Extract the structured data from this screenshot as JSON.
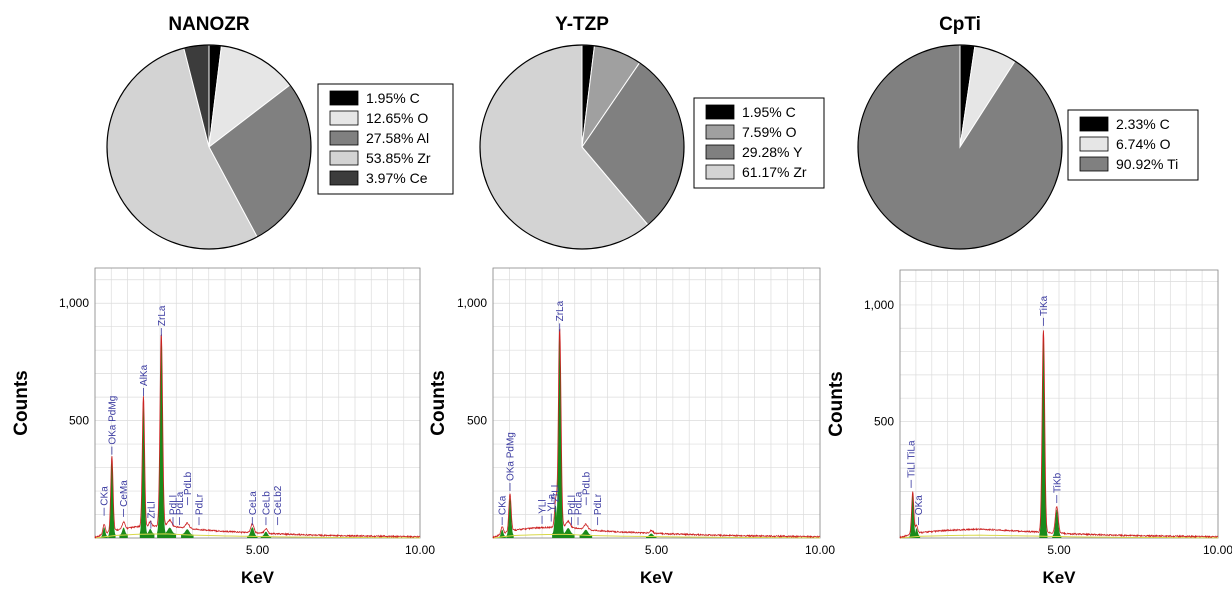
{
  "chart_data": [
    {
      "type": "pie",
      "title": "NANOZR",
      "slices": [
        {
          "label": "1.95% C",
          "value": 1.95,
          "color": "#000000"
        },
        {
          "label": "12.65% O",
          "value": 12.65,
          "color": "#e6e6e6"
        },
        {
          "label": "27.58% Al",
          "value": 27.58,
          "color": "#808080"
        },
        {
          "label": "53.85% Zr",
          "value": 53.85,
          "color": "#d3d3d3"
        },
        {
          "label": "3.97% Ce",
          "value": 3.97,
          "color": "#3c3c3c"
        }
      ]
    },
    {
      "type": "pie",
      "title": "Y-TZP",
      "slices": [
        {
          "label": "1.95% C",
          "value": 1.95,
          "color": "#000000"
        },
        {
          "label": "7.59% O",
          "value": 7.59,
          "color": "#a0a0a0"
        },
        {
          "label": "29.28% Y",
          "value": 29.28,
          "color": "#808080"
        },
        {
          "label": "61.17% Zr",
          "value": 61.17,
          "color": "#d3d3d3"
        }
      ]
    },
    {
      "type": "pie",
      "title": "CpTi",
      "slices": [
        {
          "label": "2.33% C",
          "value": 2.33,
          "color": "#000000"
        },
        {
          "label": "6.74% O",
          "value": 6.74,
          "color": "#e6e6e6"
        },
        {
          "label": "90.92% Ti",
          "value": 90.92,
          "color": "#808080"
        }
      ]
    },
    {
      "type": "line",
      "name": "NANOZR spectrum",
      "xlabel": "KeV",
      "ylabel": "Counts",
      "xlim": [
        0,
        10
      ],
      "ylim": [
        0,
        1150
      ],
      "xticks": [
        {
          "v": 5,
          "label": "5.00"
        },
        {
          "v": 10,
          "label": "10.00"
        }
      ],
      "yticks": [
        {
          "v": 500,
          "label": "500"
        },
        {
          "v": 1000,
          "label": "1,000"
        }
      ],
      "peaks": [
        {
          "x": 0.28,
          "h": 40,
          "w": 0.035
        },
        {
          "x": 0.52,
          "h": 320,
          "w": 0.035
        },
        {
          "x": 0.88,
          "h": 30,
          "w": 0.04
        },
        {
          "x": 1.49,
          "h": 555,
          "w": 0.035
        },
        {
          "x": 1.7,
          "h": 20,
          "w": 0.04
        },
        {
          "x": 2.04,
          "h": 820,
          "w": 0.04
        },
        {
          "x": 2.3,
          "h": 25,
          "w": 0.06
        },
        {
          "x": 2.84,
          "h": 22,
          "w": 0.06
        },
        {
          "x": 4.84,
          "h": 38,
          "w": 0.05
        },
        {
          "x": 5.26,
          "h": 20,
          "w": 0.05
        }
      ],
      "background": [
        {
          "x": 0,
          "y": 0
        },
        {
          "x": 0.6,
          "y": 30
        },
        {
          "x": 1.3,
          "y": 45
        },
        {
          "x": 2.2,
          "y": 50
        },
        {
          "x": 3.0,
          "y": 35
        },
        {
          "x": 4.0,
          "y": 25
        },
        {
          "x": 5.5,
          "y": 15
        },
        {
          "x": 7.0,
          "y": 8
        },
        {
          "x": 10.0,
          "y": 2
        }
      ],
      "peak_labels": [
        {
          "x": 0.28,
          "y": 95,
          "text": "CKa"
        },
        {
          "x": 0.52,
          "y": 355,
          "text": "OKa PdMg"
        },
        {
          "x": 0.88,
          "y": 90,
          "text": "CeMa"
        },
        {
          "x": 1.49,
          "y": 605,
          "text": "AlKa"
        },
        {
          "x": 1.72,
          "y": 40,
          "text": "ZrLl"
        },
        {
          "x": 2.04,
          "y": 860,
          "text": "ZrLa"
        },
        {
          "x": 2.4,
          "y": 55,
          "text": "PdLl"
        },
        {
          "x": 2.6,
          "y": 55,
          "text": "PdLa"
        },
        {
          "x": 2.85,
          "y": 140,
          "text": "PdLb"
        },
        {
          "x": 3.2,
          "y": 55,
          "text": "PdLr"
        },
        {
          "x": 4.84,
          "y": 55,
          "text": "CeLa"
        },
        {
          "x": 5.26,
          "y": 55,
          "text": "CeLb"
        },
        {
          "x": 5.62,
          "y": 55,
          "text": "CeLb2"
        }
      ]
    },
    {
      "type": "line",
      "name": "Y-TZP spectrum",
      "xlabel": "KeV",
      "ylabel": "Counts",
      "xlim": [
        0,
        10
      ],
      "ylim": [
        0,
        1150
      ],
      "xticks": [
        {
          "v": 5,
          "label": "5.00"
        },
        {
          "v": 10,
          "label": "10.00"
        }
      ],
      "yticks": [
        {
          "v": 500,
          "label": "500"
        },
        {
          "v": 1000,
          "label": "1,000"
        }
      ],
      "peaks": [
        {
          "x": 0.28,
          "h": 30,
          "w": 0.035
        },
        {
          "x": 0.52,
          "h": 160,
          "w": 0.035
        },
        {
          "x": 1.92,
          "h": 120,
          "w": 0.035
        },
        {
          "x": 2.04,
          "h": 850,
          "w": 0.04
        },
        {
          "x": 2.3,
          "h": 25,
          "w": 0.06
        },
        {
          "x": 2.84,
          "h": 22,
          "w": 0.06
        },
        {
          "x": 4.84,
          "h": 12,
          "w": 0.05
        }
      ],
      "background": [
        {
          "x": 0,
          "y": 0
        },
        {
          "x": 0.6,
          "y": 30
        },
        {
          "x": 1.3,
          "y": 40
        },
        {
          "x": 2.2,
          "y": 45
        },
        {
          "x": 3.0,
          "y": 30
        },
        {
          "x": 4.0,
          "y": 22
        },
        {
          "x": 5.5,
          "y": 14
        },
        {
          "x": 7.0,
          "y": 8
        },
        {
          "x": 10.0,
          "y": 2
        }
      ],
      "peak_labels": [
        {
          "x": 0.28,
          "y": 55,
          "text": "CKa"
        },
        {
          "x": 0.52,
          "y": 200,
          "text": "OKa PdMg"
        },
        {
          "x": 1.5,
          "y": 60,
          "text": "YLl"
        },
        {
          "x": 1.78,
          "y": 70,
          "text": "YLa"
        },
        {
          "x": 1.9,
          "y": 110,
          "text": "ZrLl"
        },
        {
          "x": 2.04,
          "y": 880,
          "text": "ZrLa"
        },
        {
          "x": 2.4,
          "y": 55,
          "text": "PdLl"
        },
        {
          "x": 2.6,
          "y": 55,
          "text": "PdLa"
        },
        {
          "x": 2.85,
          "y": 140,
          "text": "PdLb"
        },
        {
          "x": 3.2,
          "y": 55,
          "text": "PdLr"
        }
      ]
    },
    {
      "type": "line",
      "name": "CpTi spectrum",
      "xlabel": "KeV",
      "ylabel": "Counts",
      "xlim": [
        0,
        10
      ],
      "ylim": [
        0,
        1150
      ],
      "xticks": [
        {
          "v": 5,
          "label": "5.00"
        },
        {
          "v": 10,
          "label": "10.00"
        }
      ],
      "yticks": [
        {
          "v": 500,
          "label": "500"
        },
        {
          "v": 1000,
          "label": "1,000"
        }
      ],
      "peaks": [
        {
          "x": 0.4,
          "h": 180,
          "w": 0.035
        },
        {
          "x": 0.52,
          "h": 35,
          "w": 0.035
        },
        {
          "x": 4.51,
          "h": 870,
          "w": 0.04
        },
        {
          "x": 4.93,
          "h": 115,
          "w": 0.045
        }
      ],
      "background": [
        {
          "x": 0,
          "y": 0
        },
        {
          "x": 0.6,
          "y": 20
        },
        {
          "x": 1.5,
          "y": 30
        },
        {
          "x": 2.5,
          "y": 35
        },
        {
          "x": 4.0,
          "y": 25
        },
        {
          "x": 5.5,
          "y": 14
        },
        {
          "x": 7.0,
          "y": 8
        },
        {
          "x": 10.0,
          "y": 2
        }
      ],
      "peak_labels": [
        {
          "x": 0.35,
          "y": 215,
          "text": "TiLl TiLa"
        },
        {
          "x": 0.58,
          "y": 55,
          "text": "OKa"
        },
        {
          "x": 4.51,
          "y": 910,
          "text": "TiKa"
        },
        {
          "x": 4.93,
          "y": 150,
          "text": "TiKb"
        }
      ]
    }
  ]
}
